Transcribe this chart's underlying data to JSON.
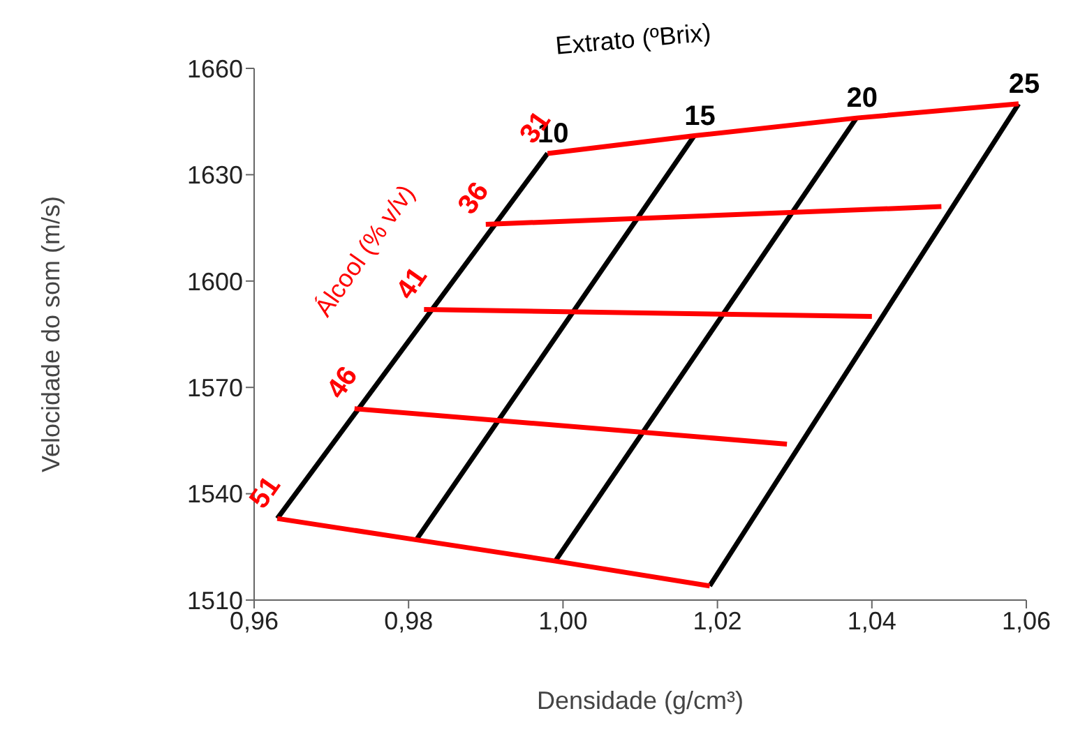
{
  "chart_data": {
    "type": "line",
    "xlabel": "Densidade (g/cm³)",
    "ylabel": "Velocidade do som (m/s)",
    "xlim": [
      0.96,
      1.06
    ],
    "xticks": [
      {
        "value": 0.96,
        "label": "0,96"
      },
      {
        "value": 0.98,
        "label": "0,98"
      },
      {
        "value": 1.0,
        "label": "1,00"
      },
      {
        "value": 1.02,
        "label": "1,02"
      },
      {
        "value": 1.04,
        "label": "1,04"
      },
      {
        "value": 1.06,
        "label": "1,06"
      }
    ],
    "ylim": [
      1510,
      1660
    ],
    "yticks": [
      1510,
      1540,
      1570,
      1600,
      1630,
      1660
    ],
    "marker": "none",
    "line_style": "solid",
    "annotations": [
      "Extrato (ºBrix)",
      "Álcool (% v/v)"
    ],
    "series": [
      {
        "name": "10",
        "color": "#000000",
        "x": [
          0.963,
          0.998
        ],
        "values": [
          1533,
          1636
        ]
      },
      {
        "name": "15",
        "color": "#000000",
        "x": [
          0.981,
          1.017
        ],
        "values": [
          1527,
          1641
        ]
      },
      {
        "name": "20",
        "color": "#000000",
        "x": [
          0.999,
          1.038
        ],
        "values": [
          1521,
          1646
        ]
      },
      {
        "name": "25",
        "color": "#000000",
        "x": [
          1.019,
          1.059
        ],
        "values": [
          1514,
          1650
        ]
      },
      {
        "name": "31",
        "color": "#ff0000",
        "x": [
          0.998,
          1.017,
          1.038,
          1.059
        ],
        "values": [
          1636,
          1641,
          1646,
          1650
        ]
      },
      {
        "name": "36",
        "color": "#ff0000",
        "x": [
          0.99,
          1.049
        ],
        "values": [
          1616,
          1621
        ]
      },
      {
        "name": "41",
        "color": "#ff0000",
        "x": [
          0.982,
          1.04
        ],
        "values": [
          1592,
          1590
        ]
      },
      {
        "name": "46",
        "color": "#ff0000",
        "x": [
          0.973,
          1.029
        ],
        "values": [
          1564,
          1554
        ]
      },
      {
        "name": "51",
        "color": "#ff0000",
        "x": [
          0.963,
          0.981,
          0.999,
          1.019
        ],
        "values": [
          1533,
          1527,
          1521,
          1514
        ]
      }
    ]
  }
}
